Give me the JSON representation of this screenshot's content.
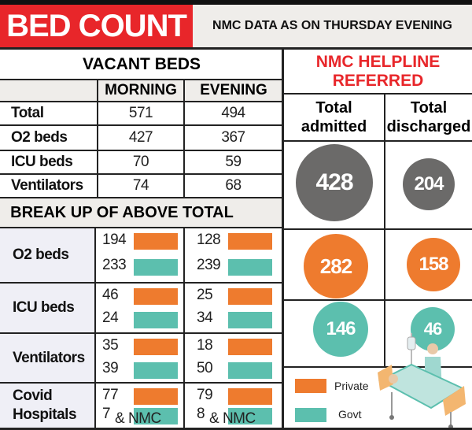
{
  "header": {
    "title": "BED COUNT",
    "subtitle": "NMC DATA AS ON THURSDAY EVENING"
  },
  "vacant": {
    "title": "VACANT BEDS",
    "columns": [
      "MORNING",
      "EVENING"
    ],
    "rows": [
      {
        "label": "Total",
        "morning": "571",
        "evening": "494"
      },
      {
        "label": "O2 beds",
        "morning": "427",
        "evening": "367"
      },
      {
        "label": "ICU beds",
        "morning": "70",
        "evening": "59"
      },
      {
        "label": "Ventilators",
        "morning": "74",
        "evening": "68"
      }
    ]
  },
  "breakup": {
    "title": "BREAK UP OF ABOVE TOTAL",
    "rows": [
      {
        "label": "O2 beds",
        "morning": {
          "private": "194",
          "govt": "233"
        },
        "evening": {
          "private": "128",
          "govt": "239"
        }
      },
      {
        "label": "ICU beds",
        "morning": {
          "private": "46",
          "govt": "24"
        },
        "evening": {
          "private": "25",
          "govt": "34"
        }
      },
      {
        "label": "Ventilators",
        "morning": {
          "private": "35",
          "govt": "39"
        },
        "evening": {
          "private": "18",
          "govt": "50"
        }
      },
      {
        "label": "Covid Hospitals",
        "morning": {
          "private": "77",
          "govt": "7"
        },
        "evening": {
          "private": "79",
          "govt": "8"
        },
        "note": "& NMC"
      }
    ]
  },
  "helpline": {
    "title": "NMC HELPLINE REFERRED",
    "col1": "Total admitted",
    "col2": "Total discharged",
    "total": {
      "admitted": "428",
      "discharged": "204"
    },
    "private": {
      "admitted": "282",
      "discharged": "158"
    },
    "govt": {
      "admitted": "146",
      "discharged": "46"
    }
  },
  "legend": {
    "private": "Private",
    "govt": "Govt"
  },
  "colors": {
    "red": "#e8262a",
    "private": "#ee7b2e",
    "govt": "#5cbfae",
    "total": "#6b6a69",
    "header_bg": "#efedea",
    "label_bg": "#efeff6"
  }
}
